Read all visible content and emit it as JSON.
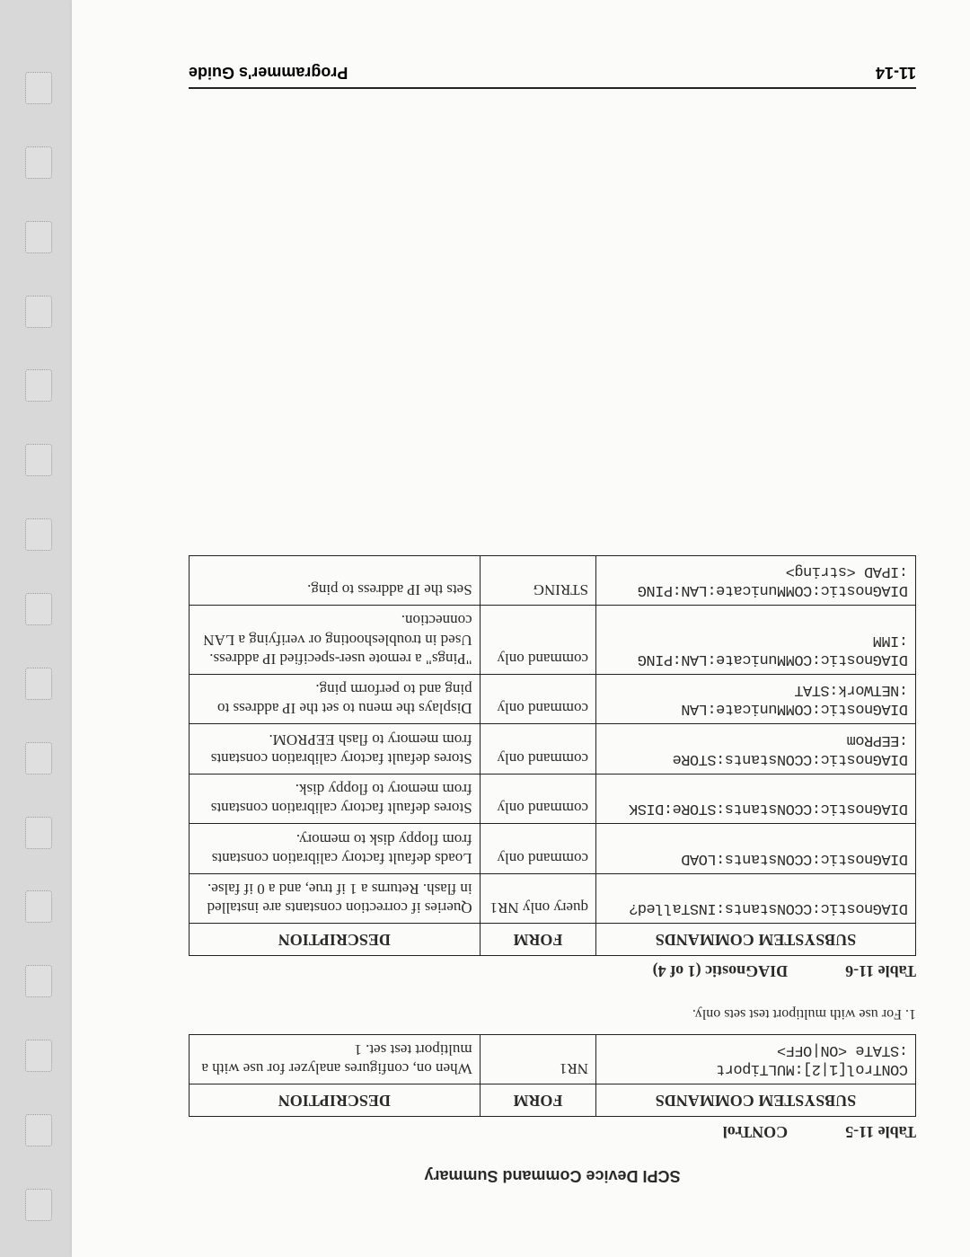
{
  "running_head": "SCPI Device Command Summary",
  "table1": {
    "label": "Table 11-5",
    "title": "CONTrol",
    "headers": {
      "c1": "SUBSYSTEM COMMANDS",
      "c2": "FORM",
      "c3": "DESCRIPTION"
    },
    "rows": [
      {
        "cmd": "CONTrol[1|2]:MULTiport\n:STATe <ON|OFF>",
        "form": "NR1",
        "desc": "When on, configures analyzer for use with a multiport test set. 1"
      }
    ]
  },
  "footnote": "1. For use with multiport test sets only.",
  "table2": {
    "label": "Table 11-6",
    "title": "DIAGnostic (1 of 4)",
    "headers": {
      "c1": "SUBSYSTEM COMMANDS",
      "c2": "FORM",
      "c3": "DESCRIPTION"
    },
    "rows": [
      {
        "cmd": "DIAGnostic:CCONstants:INSTalled?",
        "form": "query only NR1",
        "desc": "Queries if correction constants are installed in flash. Returns a 1 if true, and a 0 if false."
      },
      {
        "cmd": "DIAGnostic:CCONstants:LOAD",
        "form": "command only",
        "desc": "Loads default factory calibration constants from floppy disk to memory."
      },
      {
        "cmd": "DIAGnostic:CCONstants:STORe:DISK",
        "form": "command only",
        "desc": "Stores default factory calibration constants from memory to floppy disk."
      },
      {
        "cmd": "DIAGnostic:CCONstants:STORe\n:EEPRom",
        "form": "command only",
        "desc": "Stores default factory calibration constants from memory to flash EEPROM."
      },
      {
        "cmd": "DIAGnostic:COMMunicate:LAN\n:NETWork:STAT",
        "form": "command only",
        "desc": "Displays the menu to set the IP address to ping and to perform ping."
      },
      {
        "cmd": "DIAGnostic:COMMunicate:LAN:PING\n:IMM",
        "form": "command only",
        "desc": "\"Pings\" a remote user-specified IP address. Used in troubleshooting or verifying a LAN connection."
      },
      {
        "cmd": "DIAGnostic:COMMunicate:LAN:PING\n:IPAD <string>",
        "form": "STRING",
        "desc": "Sets the IP address to ping."
      }
    ]
  },
  "footer": {
    "left": "11-14",
    "right": "Programmer's Guide"
  },
  "style": {
    "page_bg": "#d8d8d8",
    "paper_bg": "#fbfbf9",
    "text_color": "#2a2a2a",
    "border_color": "#222222",
    "mono_font": "Courier New",
    "serif_font": "Georgia",
    "sans_font": "Arial",
    "hole_count": 16
  }
}
